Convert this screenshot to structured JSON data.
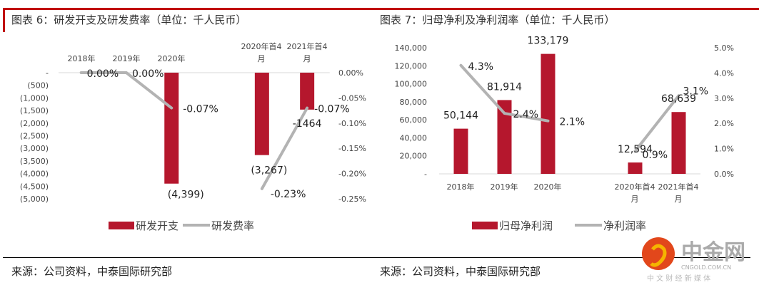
{
  "left": {
    "title": "图表 6：研发开支及研发费率（单位：千人民币）",
    "source": "来源：公司资料，中泰国际研究部",
    "chart_data": {
      "type": "bar+line",
      "categories": [
        "2018年",
        "2019年",
        "2020年",
        "",
        "2020年首4月",
        "2021年首4月"
      ],
      "series": [
        {
          "name": "研发开支",
          "type": "bar",
          "axis": "left",
          "values": [
            0,
            0,
            -4399,
            null,
            -3267,
            -1464
          ],
          "labels": [
            "",
            "",
            "(4,399)",
            "",
            "(3,267)",
            "-1464"
          ],
          "color": "#b5172d"
        },
        {
          "name": "研发费率",
          "type": "line",
          "axis": "right",
          "values": [
            0.0,
            0.0,
            -0.07,
            null,
            -0.23,
            -0.07
          ],
          "labels": [
            "0.00%",
            "0.00%",
            "-0.07%",
            "",
            "-0.23%",
            "-0.07%"
          ],
          "color": "#b3b3b3"
        }
      ],
      "ylim_left": [
        -5000,
        0
      ],
      "yticks_left": [
        "-",
        "(500)",
        "(1,000)",
        "(1,500)",
        "(2,000)",
        "(2,500)",
        "(3,000)",
        "(3,500)",
        "(4,000)",
        "(4,500)",
        "(5,000)"
      ],
      "ylim_right": [
        -0.25,
        0
      ],
      "yticks_right": [
        "0.00%",
        "-0.05%",
        "-0.10%",
        "-0.15%",
        "-0.20%",
        "-0.25%"
      ],
      "legend": "bottom",
      "grid": false
    }
  },
  "right": {
    "title": "图表 7：归母净利及净利润率（单位：千人民币）",
    "source": "来源：公司资料，中泰国际研究部",
    "chart_data": {
      "type": "bar+line",
      "categories": [
        "2018年",
        "2019年",
        "2020年",
        "",
        "2020年首4月",
        "2021年首4月"
      ],
      "series": [
        {
          "name": "归母净利润",
          "type": "bar",
          "axis": "left",
          "values": [
            50144,
            81914,
            133179,
            null,
            12594,
            68639
          ],
          "labels": [
            "50,144",
            "81,914",
            "133,179",
            "",
            "12,594",
            "68,639"
          ],
          "color": "#b5172d"
        },
        {
          "name": "净利润率",
          "type": "line",
          "axis": "right",
          "values": [
            4.3,
            2.4,
            2.1,
            null,
            0.9,
            3.1
          ],
          "labels": [
            "4.3%",
            "2.4%",
            "2.1%",
            "",
            "0.9%",
            "3.1%"
          ],
          "color": "#b3b3b3"
        }
      ],
      "ylim_left": [
        0,
        140000
      ],
      "yticks_left": [
        "-",
        "20,000",
        "40,000",
        "60,000",
        "80,000",
        "100,000",
        "120,000",
        "140,000"
      ],
      "ylim_right": [
        0,
        5
      ],
      "yticks_right": [
        "0.0%",
        "1.0%",
        "2.0%",
        "3.0%",
        "4.0%",
        "5.0%"
      ],
      "legend": "bottom",
      "grid": false
    }
  },
  "watermark": {
    "name": "中金网",
    "domain": "CNGOLD.COM.CN",
    "tagline": "中 文 财 经 新 媒 体"
  }
}
